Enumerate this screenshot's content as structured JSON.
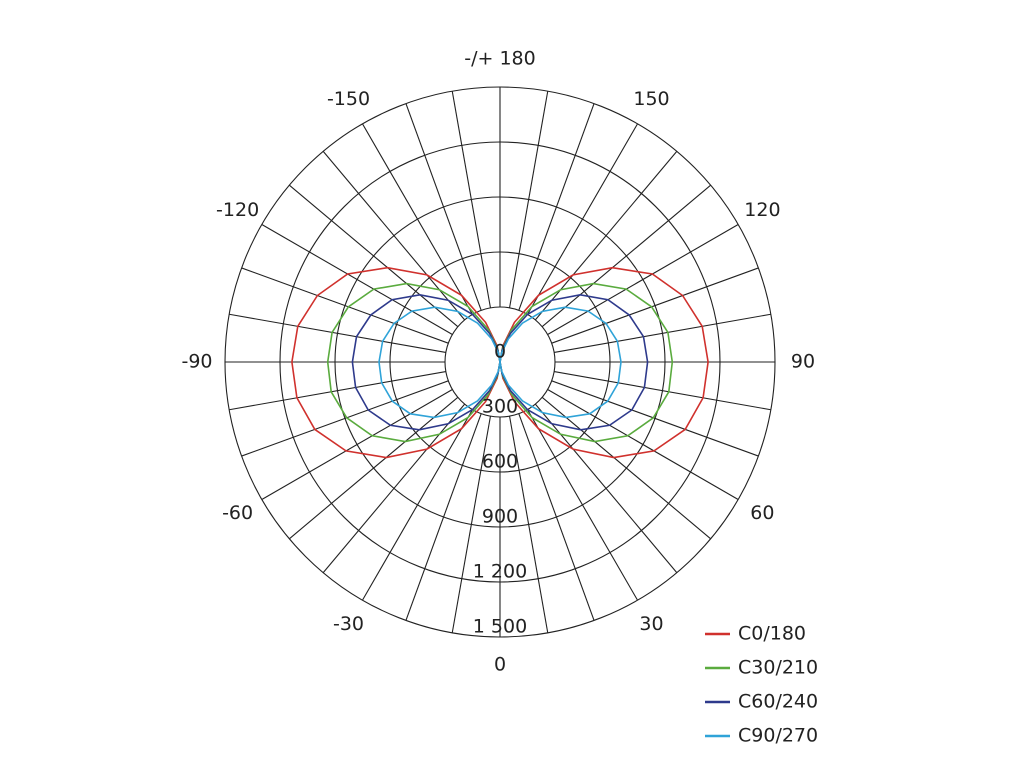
{
  "chart_data": {
    "type": "polar",
    "x": [
      -180,
      -170,
      -160,
      -150,
      -140,
      -130,
      -120,
      -110,
      -100,
      -90,
      -80,
      -70,
      -60,
      -50,
      -40,
      -30,
      -20,
      -10,
      0,
      10,
      20,
      30,
      40,
      50,
      60,
      70,
      80,
      90,
      100,
      110,
      120,
      130,
      140,
      150,
      160,
      170,
      180
    ],
    "series": [
      {
        "name": "C0/180",
        "color": "#d0312d",
        "values": [
          0,
          90,
          230,
          420,
          620,
          800,
          960,
          1060,
          1120,
          1135,
          1125,
          1075,
          970,
          810,
          620,
          420,
          230,
          90,
          0,
          90,
          230,
          420,
          620,
          810,
          970,
          1075,
          1125,
          1135,
          1120,
          1060,
          960,
          800,
          620,
          420,
          230,
          90,
          0
        ]
      },
      {
        "name": "C30/210",
        "color": "#5aab3e",
        "values": [
          0,
          75,
          190,
          350,
          515,
          665,
          795,
          880,
          930,
          940,
          935,
          890,
          805,
          675,
          515,
          350,
          190,
          75,
          0,
          75,
          190,
          350,
          515,
          675,
          805,
          890,
          935,
          940,
          930,
          880,
          795,
          665,
          515,
          350,
          190,
          75,
          0
        ]
      },
      {
        "name": "C60/240",
        "color": "#2e3a8c",
        "values": [
          0,
          65,
          165,
          300,
          440,
          570,
          680,
          750,
          795,
          805,
          800,
          765,
          690,
          575,
          440,
          300,
          165,
          65,
          0,
          65,
          165,
          300,
          440,
          575,
          690,
          765,
          800,
          805,
          795,
          750,
          680,
          570,
          440,
          300,
          165,
          65,
          0
        ]
      },
      {
        "name": "C90/270",
        "color": "#2fa3d8",
        "values": [
          0,
          52,
          135,
          245,
          360,
          465,
          555,
          615,
          650,
          660,
          655,
          625,
          565,
          470,
          360,
          245,
          135,
          52,
          0,
          52,
          135,
          245,
          360,
          470,
          565,
          625,
          655,
          660,
          650,
          615,
          555,
          465,
          360,
          245,
          135,
          52,
          0
        ]
      }
    ],
    "rlim": [
      0,
      1500
    ],
    "rticks": [
      0,
      300,
      600,
      900,
      {
        "value": 1200,
        "label": "1 200"
      },
      {
        "value": 1500,
        "label": "1 500"
      }
    ],
    "thetaticks": [
      0,
      30,
      60,
      90,
      120,
      150,
      {
        "value": 180,
        "label": "-/+ 180"
      },
      -150,
      -120,
      -90,
      -60,
      -30
    ],
    "legend": "bottom-right"
  }
}
